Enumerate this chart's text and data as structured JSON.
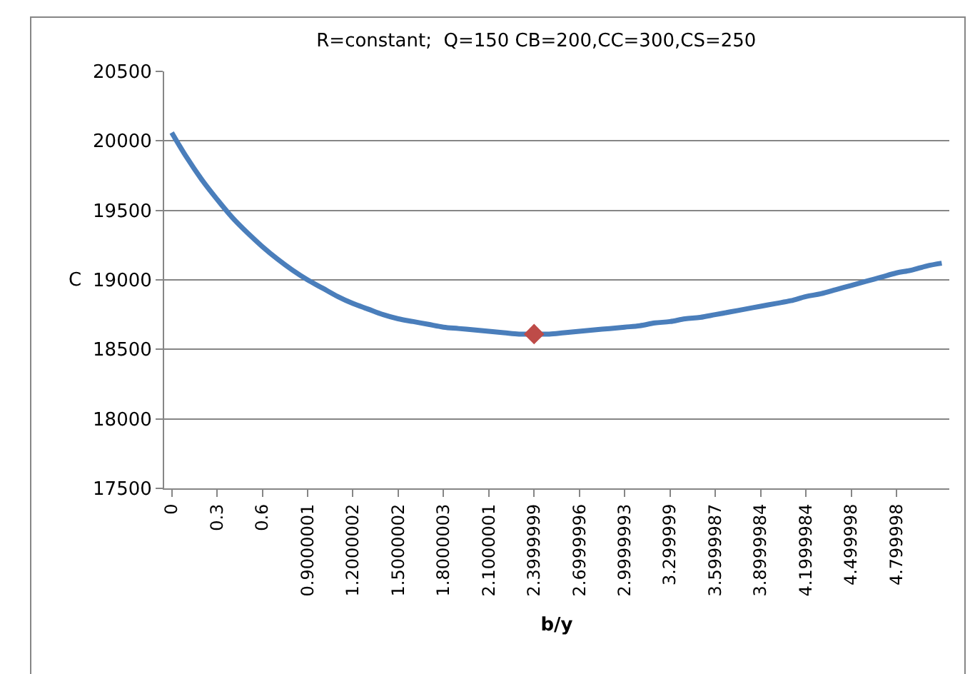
{
  "chart_data": {
    "type": "line",
    "title": "R=constant;  Q=150 CB=200,CC=300,CS=250",
    "xlabel": "b/y",
    "ylabel": "C",
    "categories": [
      "0",
      null,
      null,
      "0.3",
      null,
      null,
      "0.6",
      null,
      null,
      "0.9000001",
      null,
      null,
      "1.2000002",
      null,
      null,
      "1.5000002",
      null,
      null,
      "1.8000003",
      null,
      null,
      "2.1000001",
      null,
      null,
      "2.3999999",
      null,
      null,
      "2.6999996",
      null,
      null,
      "2.9999993",
      null,
      null,
      "3.299999",
      null,
      null,
      "3.5999987",
      null,
      null,
      "3.8999984",
      null,
      null,
      "4.1999984",
      null,
      null,
      "4.499998",
      null,
      null,
      "4.799998",
      null,
      null,
      null
    ],
    "series": [
      {
        "color": "#4a7ebb",
        "marker": "none",
        "values": [
          20060,
          19880,
          19720,
          19580,
          19450,
          19340,
          19240,
          19150,
          19070,
          19000,
          18940,
          18880,
          18830,
          18790,
          18750,
          18720,
          18700,
          18680,
          18660,
          18650,
          18640,
          18630,
          18620,
          18610,
          18610,
          18610,
          18620,
          18630,
          18640,
          18650,
          18660,
          18670,
          18690,
          18700,
          18720,
          18730,
          18750,
          18770,
          18790,
          18810,
          18830,
          18850,
          18880,
          18900,
          18930,
          18960,
          18990,
          19020,
          19050,
          19070,
          19100,
          19120
        ]
      },
      {
        "type": "scatter",
        "color": "#be4b48",
        "marker": "diamond",
        "values": [
          null,
          null,
          null,
          null,
          null,
          null,
          null,
          null,
          null,
          null,
          null,
          null,
          null,
          null,
          null,
          null,
          null,
          null,
          null,
          null,
          null,
          null,
          null,
          null,
          18610,
          null,
          null,
          null,
          null,
          null,
          null,
          null,
          null,
          null,
          null,
          null,
          null,
          null,
          null,
          null,
          null,
          null,
          null,
          null,
          null,
          null,
          null,
          null,
          null,
          null,
          null,
          null
        ]
      }
    ],
    "ylim": [
      17500,
      20500
    ],
    "yticks": [
      17500,
      18000,
      18500,
      19000,
      19500,
      20000,
      20500
    ],
    "grid": "y"
  }
}
